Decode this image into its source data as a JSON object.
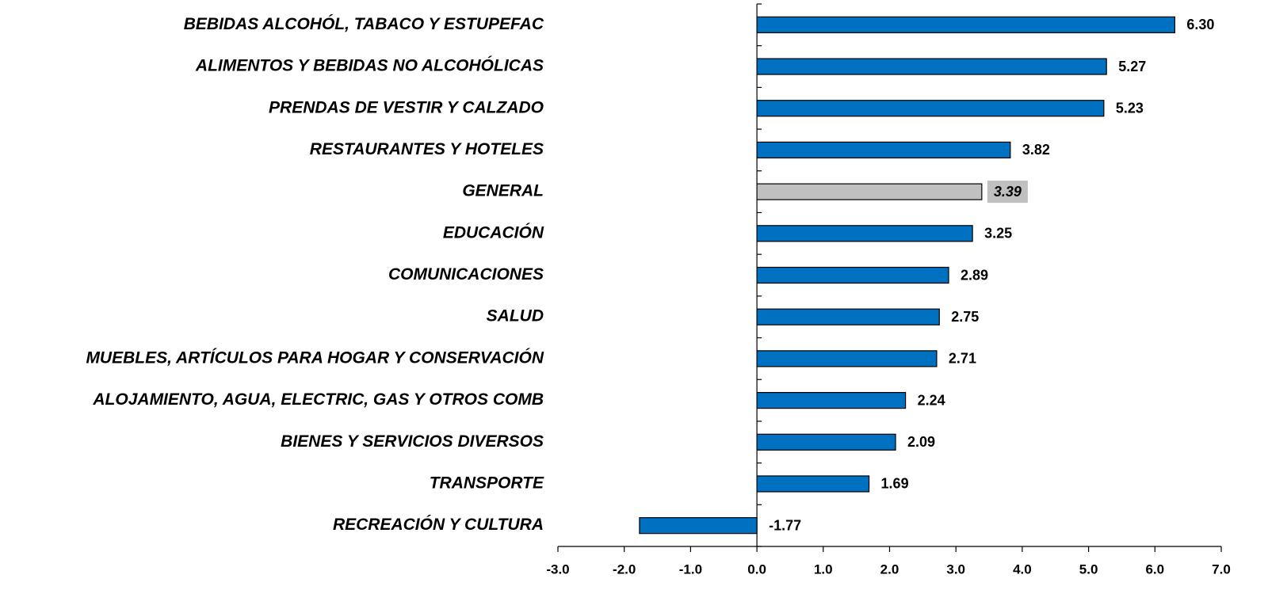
{
  "chart_data": {
    "type": "hbar",
    "categories": [
      "BEBIDAS ALCOHÓL, TABACO Y ESTUPEFAC",
      "ALIMENTOS Y BEBIDAS NO ALCOHÓLICAS",
      "PRENDAS DE VESTIR Y CALZADO",
      "RESTAURANTES Y HOTELES",
      "GENERAL",
      "EDUCACIÓN",
      "COMUNICACIONES",
      "SALUD",
      "MUEBLES, ARTÍCULOS PARA HOGAR Y CONSERVACIÓN",
      "ALOJAMIENTO, AGUA, ELECTRIC, GAS Y OTROS COMB",
      "BIENES Y SERVICIOS DIVERSOS",
      "TRANSPORTE",
      "RECREACIÓN Y CULTURA"
    ],
    "values": [
      6.3,
      5.27,
      5.23,
      3.82,
      3.39,
      3.25,
      2.89,
      2.75,
      2.71,
      2.24,
      2.09,
      1.69,
      -1.77
    ],
    "value_labels": [
      "6.30",
      "5.27",
      "5.23",
      "3.82",
      "3.39",
      "3.25",
      "2.89",
      "2.75",
      "2.71",
      "2.24",
      "2.09",
      "1.69",
      "-1.77"
    ],
    "color": "#0070c0",
    "colors": [
      "#0070c0",
      "#0070c0",
      "#0070c0",
      "#0070c0",
      "#c0c0c0",
      "#0070c0",
      "#0070c0",
      "#0070c0",
      "#0070c0",
      "#0070c0",
      "#0070c0",
      "#0070c0",
      "#0070c0"
    ],
    "xlim": [
      -3,
      7
    ],
    "xticks": [
      {
        "value": -3,
        "label": "-3.0"
      },
      {
        "value": -2,
        "label": "-2.0"
      },
      {
        "value": -1,
        "label": "-1.0"
      },
      {
        "value": 0,
        "label": "0.0"
      },
      {
        "value": 1,
        "label": "1.0"
      },
      {
        "value": 2,
        "label": "2.0"
      },
      {
        "value": 3,
        "label": "3.0"
      },
      {
        "value": 4,
        "label": "4.0"
      },
      {
        "value": 5,
        "label": "5.0"
      },
      {
        "value": 6,
        "label": "6.0"
      },
      {
        "value": 7,
        "label": "7.0"
      }
    ],
    "grid": false
  }
}
